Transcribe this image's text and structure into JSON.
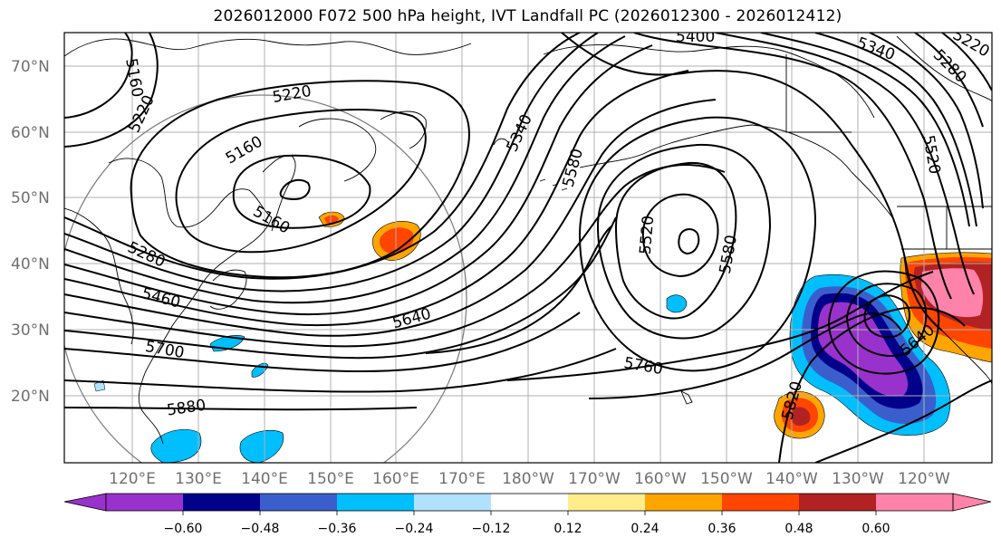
{
  "title": "2026012000 F072 500 hPa height, IVT Landfall PC (2026012300 - 2026012412)",
  "lat_labels": [
    "70°N",
    "60°N",
    "50°N",
    "40°N",
    "30°N",
    "20°N"
  ],
  "lon_labels": [
    "120°E",
    "130°E",
    "140°E",
    "150°E",
    "160°E",
    "170°E",
    "180°W",
    "170°W",
    "160°W",
    "150°W",
    "140°W",
    "130°W",
    "120°W"
  ],
  "contour_labels": [
    "5160",
    "5220",
    "5220",
    "5160",
    "5160",
    "5280",
    "5460",
    "5700",
    "5880",
    "5640",
    "5340",
    "5580",
    "5400",
    "5340",
    "5280",
    "5520",
    "5520",
    "5580",
    "5760",
    "5820",
    "5640",
    "5220"
  ],
  "colorbar": {
    "tick_labels": [
      "−0.60",
      "−0.48",
      "−0.36",
      "−0.24",
      "−0.12",
      "0.12",
      "0.24",
      "0.36",
      "0.48",
      "0.60"
    ],
    "colors": [
      "#9932CC",
      "#00008B",
      "#3A5FCD",
      "#00BFFF",
      "#B0E2FF",
      "#FFFFFF",
      "#FFEC8B",
      "#FFA500",
      "#FF4500",
      "#B22222",
      "#FF82AB"
    ]
  }
}
